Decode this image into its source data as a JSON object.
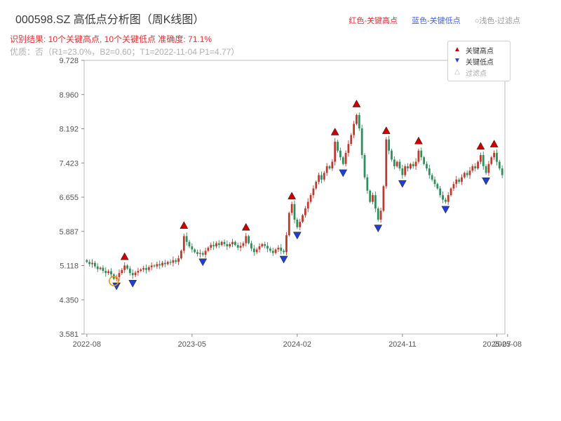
{
  "header": {
    "title": "000598.SZ 高低点分析图（周K线图）",
    "legend_high": "红色-关键高点",
    "legend_low": "蓝色-关键低点",
    "legend_filtered": "○浅色-过滤点",
    "result_line": "识别结果: 10个关键高点, 10个关键低点  准确度: 71.1%",
    "quality_line": "优质：否（R1=23.0%，B2=0.60；T1=2022-11-04 P1=4.77）"
  },
  "colors": {
    "up": "#c0392b",
    "down": "#2f8f5b",
    "key_high": "#cc0000",
    "key_low": "#1f3fd1",
    "filtered": "#bbbbbb",
    "highlight": "#e8940a",
    "axis_text": "#555555",
    "frame": "#bdbdbd"
  },
  "legend_box": {
    "items": [
      {
        "label": "关键高点",
        "marker": "up-triangle",
        "color": "#cc0000"
      },
      {
        "label": "关键低点",
        "marker": "down-triangle",
        "color": "#1f3fd1"
      },
      {
        "label": "过滤点",
        "marker": "hollow-up-triangle",
        "color": "#bbbbbb"
      }
    ]
  },
  "chart_data": {
    "type": "candlestick",
    "title": "000598.SZ 高低点分析图（周K线图）",
    "interval": "weekly",
    "x_tick_labels": [
      "2022-08",
      "2023-05",
      "2024-02",
      "2024-11",
      "2025-07",
      "2025-08"
    ],
    "x_tick_weeks": [
      0,
      39,
      78,
      117,
      152,
      156
    ],
    "y_tick_labels": [
      "3.581",
      "4.350",
      "5.118",
      "5.887",
      "6.655",
      "7.423",
      "8.192",
      "8.960",
      "9.728"
    ],
    "y_min": 3.581,
    "y_max": 9.728,
    "weekly_closes": [
      5.2,
      5.15,
      5.18,
      5.1,
      5.04,
      5.07,
      5.0,
      4.95,
      4.99,
      4.92,
      4.82,
      4.86,
      4.95,
      5.02,
      5.12,
      5.05,
      4.95,
      4.9,
      4.96,
      5.0,
      5.03,
      5.06,
      5.02,
      5.08,
      5.12,
      5.1,
      5.15,
      5.12,
      5.18,
      5.15,
      5.2,
      5.18,
      5.24,
      5.2,
      5.28,
      5.45,
      5.78,
      5.65,
      5.55,
      5.48,
      5.42,
      5.38,
      5.4,
      5.36,
      5.45,
      5.52,
      5.58,
      5.55,
      5.62,
      5.58,
      5.65,
      5.6,
      5.55,
      5.6,
      5.65,
      5.58,
      5.52,
      5.56,
      5.62,
      5.78,
      5.62,
      5.5,
      5.42,
      5.48,
      5.55,
      5.6,
      5.56,
      5.5,
      5.45,
      5.4,
      5.48,
      5.52,
      5.45,
      5.42,
      5.8,
      6.3,
      6.5,
      6.15,
      5.98,
      6.1,
      6.25,
      6.4,
      6.55,
      6.7,
      6.85,
      7.0,
      7.15,
      7.05,
      7.2,
      7.35,
      7.3,
      7.45,
      7.9,
      7.7,
      7.55,
      7.4,
      7.65,
      7.85,
      8.05,
      8.3,
      8.5,
      8.2,
      7.6,
      7.1,
      6.8,
      6.55,
      6.7,
      6.4,
      6.15,
      6.35,
      6.9,
      7.95,
      7.7,
      7.5,
      7.35,
      7.45,
      7.3,
      7.15,
      7.35,
      7.3,
      7.4,
      7.35,
      7.45,
      7.7,
      7.55,
      7.4,
      7.3,
      7.15,
      7.05,
      6.95,
      6.85,
      6.7,
      6.6,
      6.55,
      6.7,
      6.85,
      6.95,
      7.05,
      7.0,
      7.1,
      7.2,
      7.15,
      7.25,
      7.35,
      7.3,
      7.45,
      7.6,
      7.35,
      7.2,
      7.4,
      7.55,
      7.65,
      7.45,
      7.3,
      7.15
    ],
    "key_highs": [
      {
        "week": 14,
        "price": 5.32
      },
      {
        "week": 36,
        "price": 6.02
      },
      {
        "week": 59,
        "price": 5.98
      },
      {
        "week": 76,
        "price": 6.68
      },
      {
        "week": 92,
        "price": 8.12
      },
      {
        "week": 100,
        "price": 8.75
      },
      {
        "week": 111,
        "price": 8.15
      },
      {
        "week": 123,
        "price": 7.92
      },
      {
        "week": 146,
        "price": 7.8
      },
      {
        "week": 151,
        "price": 7.85
      }
    ],
    "key_lows": [
      {
        "week": 11,
        "price": 4.66
      },
      {
        "week": 17,
        "price": 4.72
      },
      {
        "week": 43,
        "price": 5.2
      },
      {
        "week": 73,
        "price": 5.26
      },
      {
        "week": 78,
        "price": 5.8
      },
      {
        "week": 95,
        "price": 7.2
      },
      {
        "week": 108,
        "price": 5.96
      },
      {
        "week": 117,
        "price": 6.96
      },
      {
        "week": 133,
        "price": 6.38
      },
      {
        "week": 148,
        "price": 7.02
      }
    ],
    "t1_point": {
      "week": 10,
      "price": 4.77,
      "date": "2022-11-04"
    }
  }
}
